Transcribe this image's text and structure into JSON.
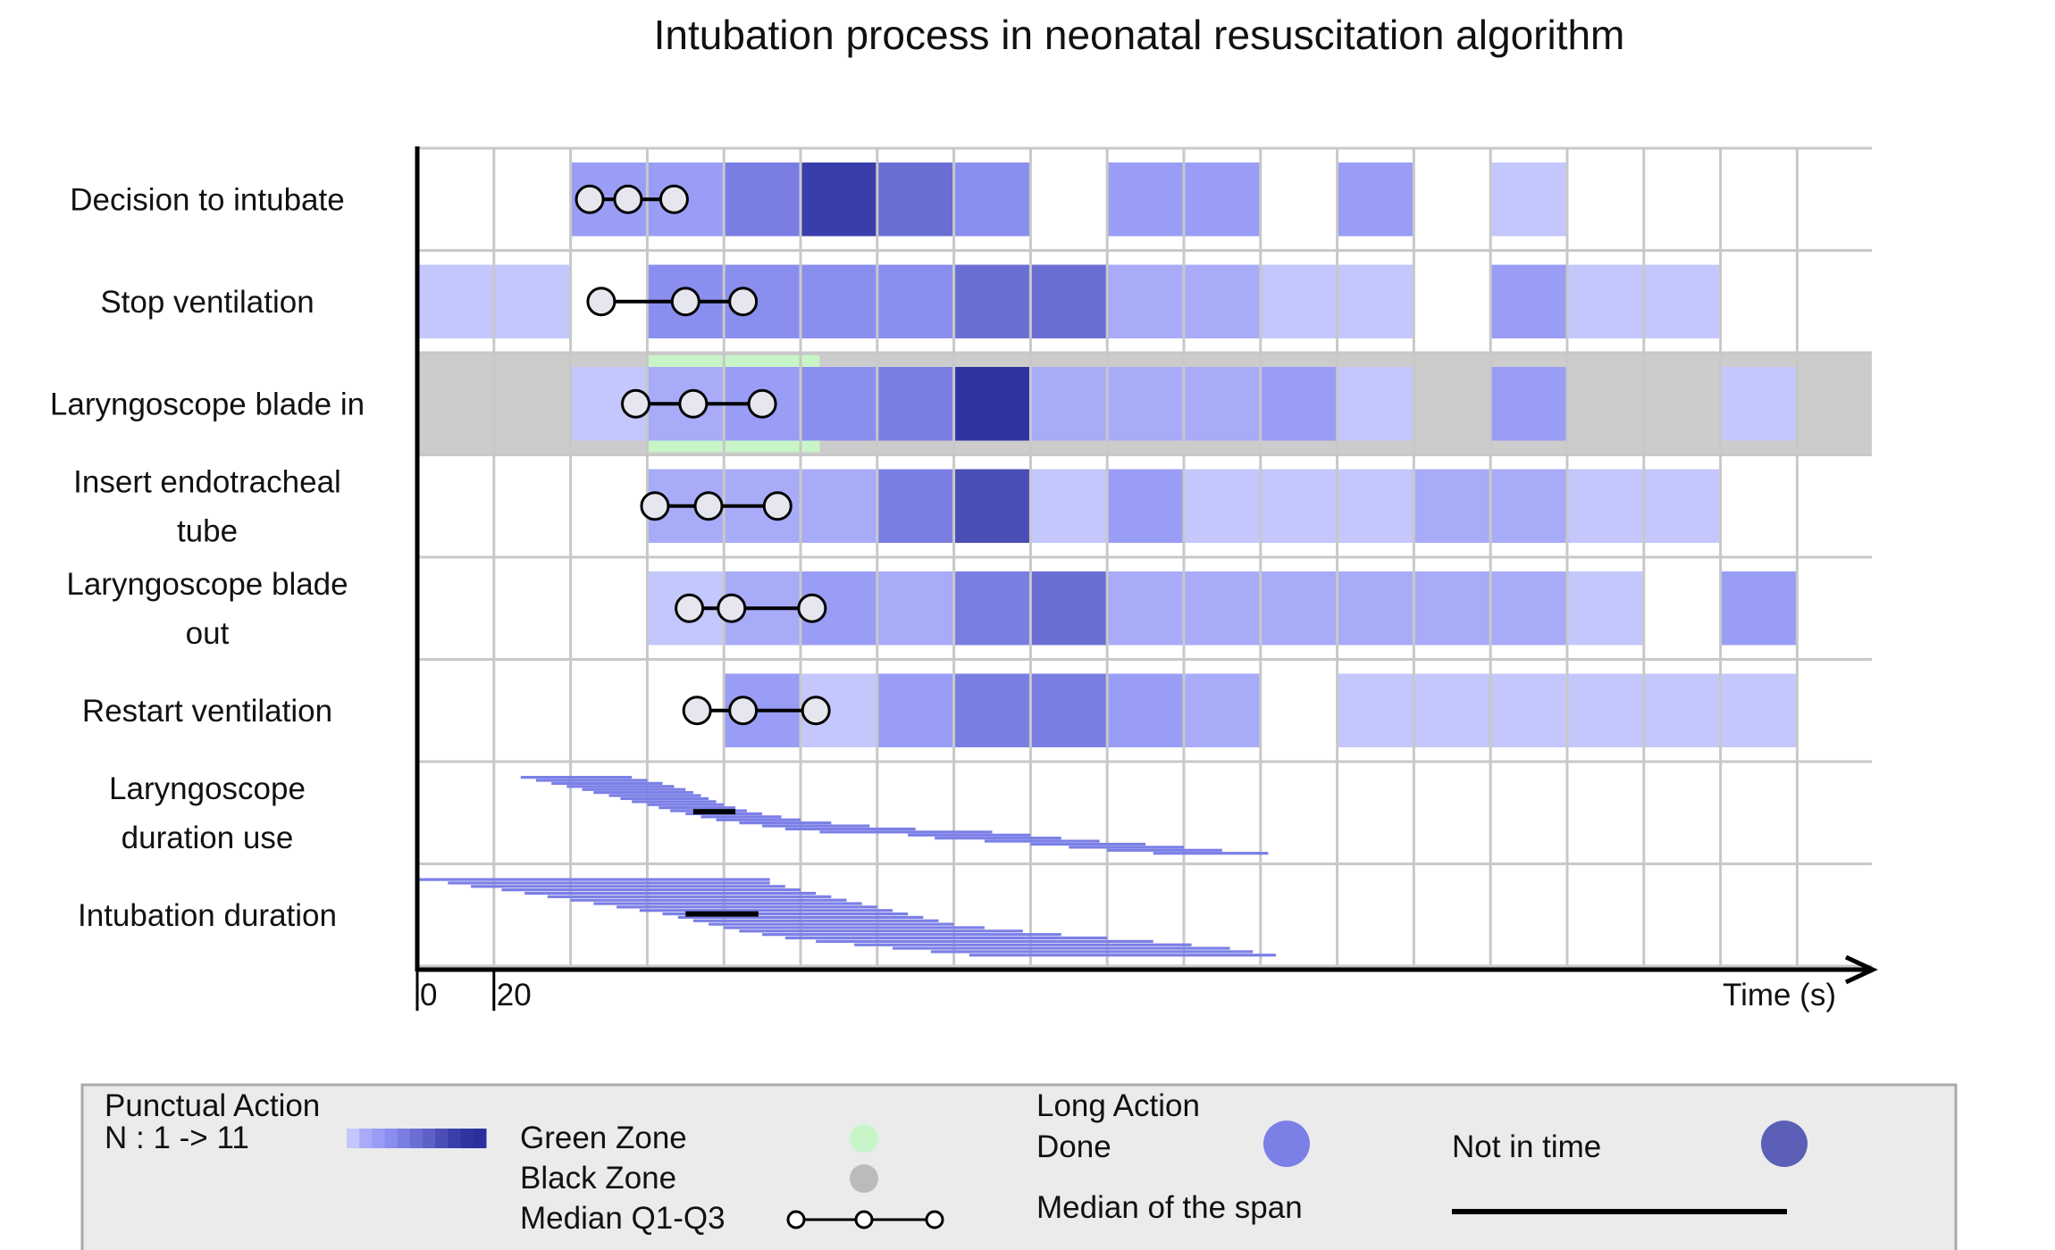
{
  "chart_data": {
    "type": "heatmap",
    "title": "Intubation process in neonatal resuscitation algorithm",
    "xlabel": "Time (s)",
    "x_ticks": [
      "0",
      "20"
    ],
    "bin_width_s": 20,
    "n_bins": 19,
    "xlim": [
      0,
      380
    ],
    "count_range": [
      1,
      11
    ],
    "colors": {
      "grid": "#c8c8c8",
      "axis": "#000000",
      "green_zone": "#c8f5c8",
      "black_zone": "#cccccc",
      "long_action_done": "#7b7fe6",
      "not_in_time": "#5b5fb5",
      "median_line": "#000000",
      "marker_fill": "#e6e6ef",
      "legend_bg": "#ebebeb",
      "ramp": [
        "#c3c7fb",
        "#a8abf8",
        "#999df6",
        "#8a8eee",
        "#7a7ee3",
        "#6b6fd4",
        "#5d61c7",
        "#4a4eb6",
        "#3a3eaa",
        "#2e33a0",
        "#2a2f9d"
      ]
    },
    "punctual_rows": [
      {
        "label": "Decision to intubate",
        "counts": [
          0,
          0,
          3,
          3,
          5,
          9,
          6,
          4,
          0,
          3,
          3,
          0,
          3,
          0,
          1,
          0,
          0,
          0,
          0
        ],
        "q1": 45,
        "median": 55,
        "q3": 67
      },
      {
        "label": "Stop ventilation",
        "counts": [
          1,
          1,
          0,
          4,
          4,
          4,
          4,
          6,
          6,
          2,
          2,
          1,
          1,
          0,
          3,
          1,
          1,
          0,
          0
        ],
        "q1": 48,
        "median": 70,
        "q3": 85
      },
      {
        "label": "Laryngoscope blade in",
        "counts": [
          0,
          0,
          1,
          2,
          3,
          4,
          5,
          10,
          2,
          2,
          2,
          3,
          1,
          0,
          3,
          0,
          0,
          1,
          0
        ],
        "q1": 57,
        "median": 72,
        "q3": 90,
        "green_zone": [
          60,
          105
        ],
        "black_zone": true
      },
      {
        "label": "Insert endotracheal tube",
        "counts": [
          0,
          0,
          0,
          2,
          2,
          2,
          5,
          8,
          1,
          3,
          1,
          1,
          1,
          2,
          2,
          1,
          1,
          0,
          0
        ],
        "q1": 62,
        "median": 76,
        "q3": 94
      },
      {
        "label": "Laryngoscope blade out",
        "counts": [
          0,
          0,
          0,
          1,
          2,
          3,
          2,
          5,
          6,
          2,
          2,
          2,
          2,
          2,
          2,
          1,
          0,
          3,
          0
        ],
        "q1": 71,
        "median": 82,
        "q3": 103
      },
      {
        "label": "Restart ventilation",
        "counts": [
          0,
          0,
          0,
          0,
          3,
          1,
          3,
          5,
          5,
          3,
          2,
          0,
          1,
          1,
          1,
          1,
          1,
          1,
          0
        ],
        "q1": 73,
        "median": 85,
        "q3": 104
      }
    ],
    "long_rows": [
      {
        "label": "Laryngoscope duration use",
        "spans": [
          [
            27,
            56
          ],
          [
            31,
            60
          ],
          [
            35,
            64
          ],
          [
            39,
            67
          ],
          [
            43,
            70
          ],
          [
            46,
            72
          ],
          [
            50,
            74
          ],
          [
            53,
            76
          ],
          [
            56,
            78
          ],
          [
            60,
            80
          ],
          [
            63,
            83
          ],
          [
            66,
            86
          ],
          [
            70,
            90
          ],
          [
            74,
            95
          ],
          [
            78,
            100
          ],
          [
            84,
            108
          ],
          [
            90,
            118
          ],
          [
            96,
            130
          ],
          [
            105,
            150
          ],
          [
            128,
            160
          ],
          [
            135,
            168
          ],
          [
            148,
            178
          ],
          [
            160,
            190
          ],
          [
            170,
            200
          ],
          [
            180,
            210
          ],
          [
            192,
            222
          ]
        ],
        "median_span": [
          72,
          83
        ]
      },
      {
        "label": "Intubation duration",
        "spans": [
          [
            0,
            92
          ],
          [
            8,
            92
          ],
          [
            14,
            96
          ],
          [
            22,
            100
          ],
          [
            28,
            104
          ],
          [
            34,
            108
          ],
          [
            40,
            112
          ],
          [
            46,
            116
          ],
          [
            52,
            120
          ],
          [
            58,
            124
          ],
          [
            64,
            128
          ],
          [
            68,
            132
          ],
          [
            72,
            136
          ],
          [
            76,
            140
          ],
          [
            80,
            148
          ],
          [
            84,
            158
          ],
          [
            90,
            168
          ],
          [
            96,
            180
          ],
          [
            104,
            192
          ],
          [
            114,
            202
          ],
          [
            124,
            212
          ],
          [
            134,
            218
          ],
          [
            144,
            224
          ]
        ],
        "median_span": [
          70,
          89
        ]
      }
    ],
    "legend": {
      "punctual_title": "Punctual Action",
      "punctual_n": "N : 1 -> 11",
      "green_zone": "Green Zone",
      "black_zone": "Black Zone",
      "median_q1_q3": "Median Q1-Q3",
      "long_title": "Long Action",
      "done": "Done",
      "not_in_time": "Not in time",
      "median_span": "Median of the span"
    }
  }
}
